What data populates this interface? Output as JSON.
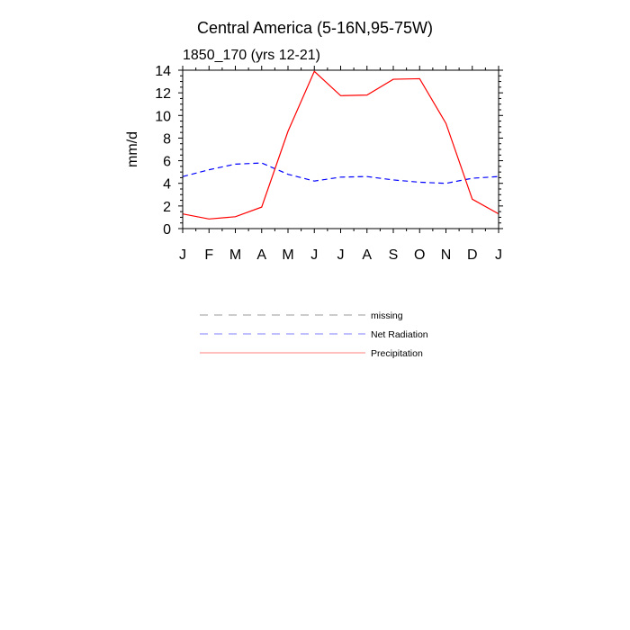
{
  "chart_data": {
    "type": "line",
    "title": "Central America (5-16N,95-75W)",
    "subtitle": "1850_170 (yrs 12-21)",
    "ylabel": "mm/d",
    "xlabel": "",
    "categories": [
      "J",
      "F",
      "M",
      "A",
      "M",
      "J",
      "J",
      "A",
      "S",
      "O",
      "N",
      "D",
      "J"
    ],
    "ylim": [
      0,
      14
    ],
    "yticks": [
      0,
      2,
      4,
      6,
      8,
      10,
      12,
      14
    ],
    "series": [
      {
        "name": "Net Radiation",
        "color": "#0000ff",
        "style": "dashed",
        "values": [
          4.6,
          5.2,
          5.7,
          5.8,
          4.8,
          4.2,
          4.55,
          4.6,
          4.3,
          4.1,
          4.0,
          4.45,
          4.6
        ]
      },
      {
        "name": "Precipitation",
        "color": "#ff0000",
        "style": "solid",
        "values": [
          1.3,
          0.85,
          1.05,
          1.9,
          8.6,
          13.9,
          11.75,
          11.8,
          13.2,
          13.25,
          9.3,
          2.6,
          1.3
        ]
      }
    ],
    "legend": {
      "position": "below",
      "entries": [
        {
          "label": "missing",
          "color": "#999999",
          "style": "dashed"
        },
        {
          "label": "Net Radiation",
          "color": "#7f7fff",
          "style": "dashed"
        },
        {
          "label": "Precipitation",
          "color": "#ff7f7f",
          "style": "solid"
        }
      ]
    }
  }
}
